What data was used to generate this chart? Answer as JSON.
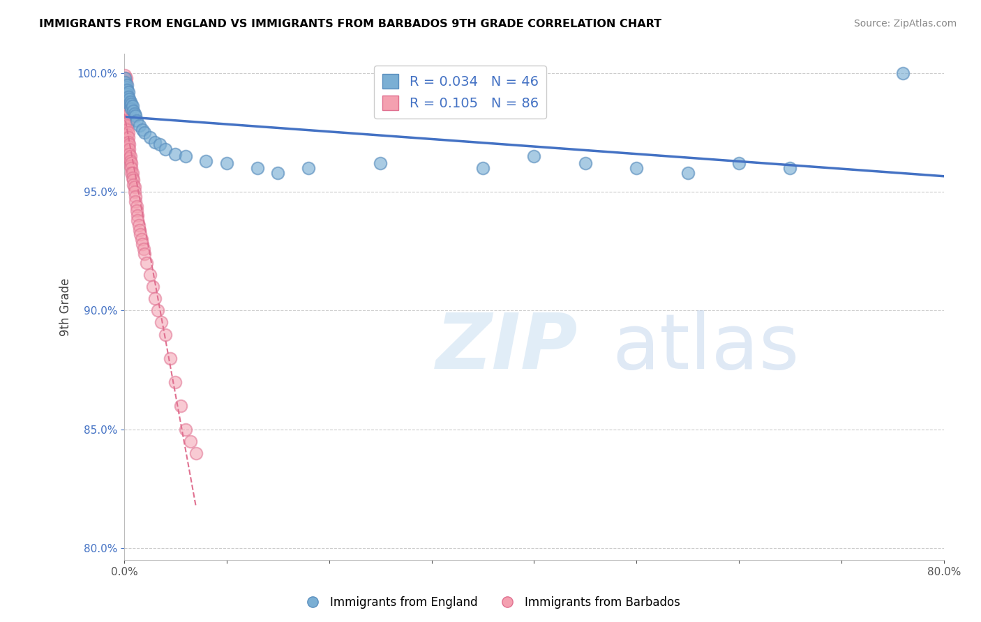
{
  "title": "IMMIGRANTS FROM ENGLAND VS IMMIGRANTS FROM BARBADOS 9TH GRADE CORRELATION CHART",
  "source": "Source: ZipAtlas.com",
  "ylabel": "9th Grade",
  "xlim": [
    0.0,
    0.8
  ],
  "ylim": [
    0.795,
    1.008
  ],
  "yticks": [
    0.8,
    0.85,
    0.9,
    0.95,
    1.0
  ],
  "yticklabels": [
    "80.0%",
    "85.0%",
    "90.0%",
    "95.0%",
    "100.0%"
  ],
  "england_R": 0.034,
  "england_N": 46,
  "barbados_R": 0.105,
  "barbados_N": 86,
  "england_color": "#7BAFD4",
  "barbados_color": "#F4A0B0",
  "england_edge_color": "#5B8FBF",
  "barbados_edge_color": "#E07090",
  "england_line_color": "#4472C4",
  "barbados_line_color": "#E07090",
  "legend_label_england": "Immigrants from England",
  "legend_label_barbados": "Immigrants from Barbados",
  "watermark_zip": "ZIP",
  "watermark_atlas": "atlas",
  "england_x": [
    0.001,
    0.001,
    0.002,
    0.002,
    0.002,
    0.003,
    0.003,
    0.003,
    0.003,
    0.004,
    0.004,
    0.004,
    0.005,
    0.005,
    0.006,
    0.006,
    0.007,
    0.007,
    0.008,
    0.009,
    0.01,
    0.011,
    0.012,
    0.015,
    0.018,
    0.02,
    0.025,
    0.03,
    0.035,
    0.04,
    0.05,
    0.06,
    0.08,
    0.1,
    0.13,
    0.15,
    0.18,
    0.25,
    0.35,
    0.4,
    0.45,
    0.5,
    0.55,
    0.6,
    0.65,
    0.76
  ],
  "england_y": [
    0.998,
    0.996,
    0.994,
    0.992,
    0.99,
    0.995,
    0.993,
    0.991,
    0.989,
    0.992,
    0.99,
    0.988,
    0.989,
    0.987,
    0.988,
    0.986,
    0.987,
    0.985,
    0.986,
    0.984,
    0.983,
    0.982,
    0.98,
    0.978,
    0.976,
    0.975,
    0.973,
    0.971,
    0.97,
    0.968,
    0.966,
    0.965,
    0.963,
    0.962,
    0.96,
    0.958,
    0.96,
    0.962,
    0.96,
    0.965,
    0.962,
    0.96,
    0.958,
    0.962,
    0.96,
    1.0
  ],
  "barbados_x": [
    0.0005,
    0.0005,
    0.0005,
    0.0005,
    0.0005,
    0.0005,
    0.0005,
    0.0005,
    0.0005,
    0.0005,
    0.001,
    0.001,
    0.001,
    0.001,
    0.001,
    0.001,
    0.001,
    0.001,
    0.001,
    0.001,
    0.001,
    0.001,
    0.001,
    0.001,
    0.001,
    0.002,
    0.002,
    0.002,
    0.002,
    0.002,
    0.002,
    0.002,
    0.002,
    0.003,
    0.003,
    0.003,
    0.003,
    0.003,
    0.003,
    0.004,
    0.004,
    0.004,
    0.004,
    0.004,
    0.005,
    0.005,
    0.005,
    0.005,
    0.006,
    0.006,
    0.006,
    0.007,
    0.007,
    0.007,
    0.008,
    0.008,
    0.009,
    0.009,
    0.01,
    0.01,
    0.011,
    0.011,
    0.012,
    0.012,
    0.013,
    0.013,
    0.014,
    0.015,
    0.016,
    0.017,
    0.018,
    0.019,
    0.02,
    0.022,
    0.025,
    0.028,
    0.03,
    0.033,
    0.036,
    0.04,
    0.045,
    0.05,
    0.055,
    0.06,
    0.065,
    0.07
  ],
  "barbados_y": [
    0.998,
    0.996,
    0.994,
    0.992,
    0.99,
    0.988,
    0.986,
    0.984,
    0.982,
    0.98,
    0.999,
    0.997,
    0.995,
    0.993,
    0.991,
    0.989,
    0.987,
    0.985,
    0.983,
    0.981,
    0.979,
    0.977,
    0.975,
    0.973,
    0.971,
    0.998,
    0.996,
    0.994,
    0.992,
    0.99,
    0.988,
    0.986,
    0.984,
    0.982,
    0.98,
    0.978,
    0.976,
    0.974,
    0.972,
    0.975,
    0.973,
    0.971,
    0.969,
    0.967,
    0.97,
    0.968,
    0.966,
    0.964,
    0.965,
    0.963,
    0.961,
    0.962,
    0.96,
    0.958,
    0.958,
    0.956,
    0.955,
    0.953,
    0.952,
    0.95,
    0.948,
    0.946,
    0.944,
    0.942,
    0.94,
    0.938,
    0.936,
    0.934,
    0.932,
    0.93,
    0.928,
    0.926,
    0.924,
    0.92,
    0.915,
    0.91,
    0.905,
    0.9,
    0.895,
    0.89,
    0.88,
    0.87,
    0.86,
    0.85,
    0.845,
    0.84
  ]
}
